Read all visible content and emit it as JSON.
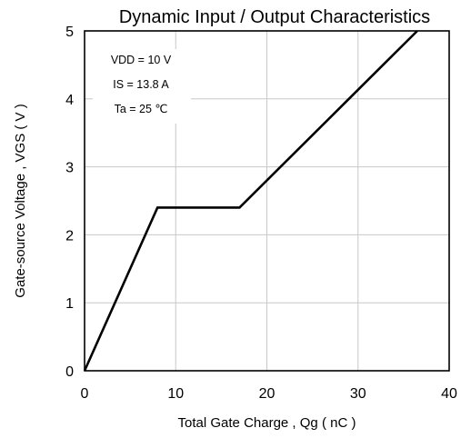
{
  "chart_data": {
    "type": "line",
    "title": "Dynamic Input / Output Characteristics",
    "xlabel": "Total Gate Charge , Qg ( nC )",
    "ylabel": "Gate-source Voltage , VGS ( V )",
    "xlim": [
      0,
      40
    ],
    "ylim": [
      0,
      5
    ],
    "xticks": [
      0,
      10,
      20,
      30,
      40
    ],
    "yticks": [
      0,
      1,
      2,
      3,
      4,
      5
    ],
    "grid": true,
    "conditions": [
      "VDD = 10 V",
      "IS = 13.8 A",
      "Ta = 25 ℃"
    ],
    "series": [
      {
        "x": [
          0,
          8,
          17,
          36.5
        ],
        "y": [
          0,
          2.4,
          2.4,
          5.0
        ]
      }
    ]
  }
}
